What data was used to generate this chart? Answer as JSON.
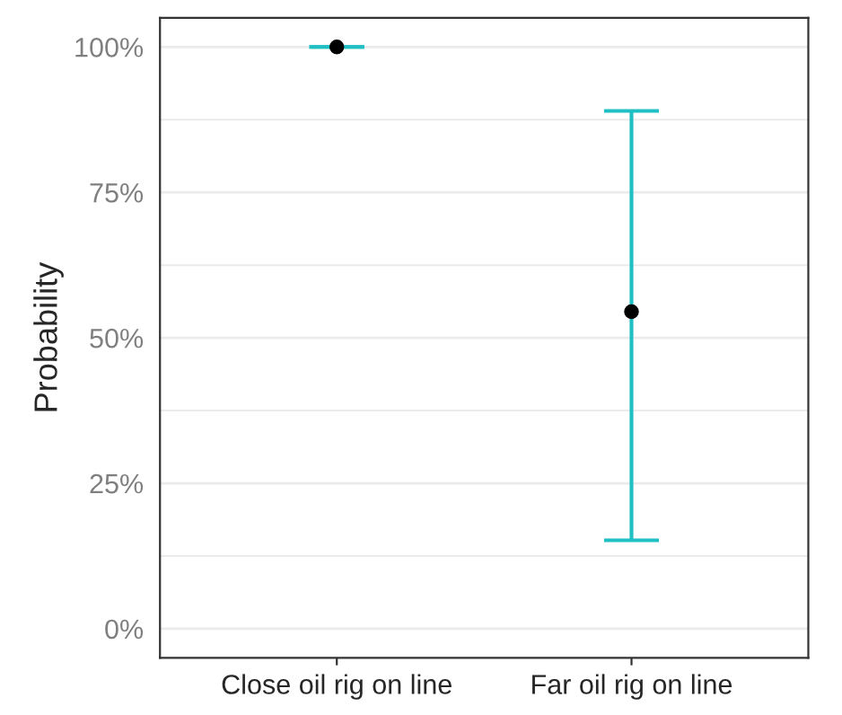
{
  "chart_data": {
    "type": "scatter",
    "ylabel": "Probability",
    "categories": [
      "Close oil rig on line",
      "Far oil rig on line"
    ],
    "series": [
      {
        "color": "#1fbfc4",
        "colors": [
          "#000000",
          "#000000"
        ],
        "values": [
          100,
          54.5
        ],
        "errors": [
          [
            100,
            100
          ],
          [
            15.2,
            89.0
          ]
        ]
      }
    ],
    "ylim": [
      -5,
      105
    ],
    "yticks": [
      {
        "value": 0,
        "label": "0%"
      },
      {
        "value": 12.5,
        "label": null
      },
      {
        "value": 25,
        "label": "25%"
      },
      {
        "value": 37.5,
        "label": null
      },
      {
        "value": 50,
        "label": "50%"
      },
      {
        "value": 62.5,
        "label": null
      },
      {
        "value": 75,
        "label": "75%"
      },
      {
        "value": 87.5,
        "label": null
      },
      {
        "value": 100,
        "label": "100%"
      }
    ],
    "grid": "y",
    "marker": "circle"
  }
}
